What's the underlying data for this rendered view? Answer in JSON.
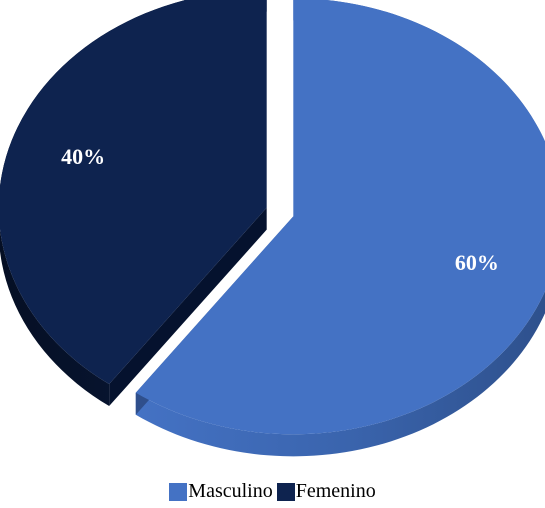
{
  "chart_data": {
    "type": "pie",
    "categories": [
      "Masculino",
      "Femenino"
    ],
    "values": [
      60,
      40
    ],
    "data_labels": [
      "60%",
      "40%"
    ],
    "colors": [
      "#4472c4",
      "#0e234f"
    ],
    "exploded": true,
    "style": "3d",
    "legend": "bottom"
  }
}
